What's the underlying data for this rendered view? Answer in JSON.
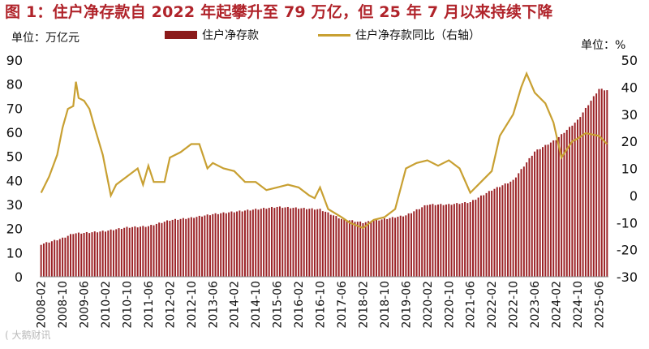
{
  "title": "图 1：住户净存款自 2022 年起攀升至 79 万亿，但 25 年 7 月以来持续下降",
  "watermark": "( 大鹅财讯",
  "chart_data": {
    "type": "bar+line",
    "left_unit": "单位：万亿元",
    "right_unit": "单位：%",
    "left_axis": {
      "min": 0,
      "max": 90,
      "ticks": [
        0,
        10,
        20,
        30,
        40,
        50,
        60,
        70,
        80,
        90
      ]
    },
    "right_axis": {
      "min": -30,
      "max": 50,
      "ticks": [
        -30,
        -20,
        -10,
        0,
        10,
        20,
        30,
        40,
        50
      ]
    },
    "x_tick_labels": [
      "2008-02",
      "2008-10",
      "2009-06",
      "2010-02",
      "2010-10",
      "2011-06",
      "2012-02",
      "2012-10",
      "2013-06",
      "2014-02",
      "2014-10",
      "2015-06",
      "2016-02",
      "2016-10",
      "2017-06",
      "2018-02",
      "2018-10",
      "2019-06",
      "2020-02",
      "2020-10",
      "2021-06",
      "2022-02",
      "2022-10",
      "2023-06",
      "2024-02",
      "2024-10",
      "2025-06"
    ],
    "legend": [
      "住户净存款",
      "住户净存款同比（右轴）"
    ],
    "series": [
      {
        "name": "住户净存款",
        "axis": "left",
        "keypoints": [
          [
            "2008-02",
            13.5
          ],
          [
            "2008-10",
            16
          ],
          [
            "2009-02",
            18
          ],
          [
            "2009-06",
            18.2
          ],
          [
            "2010-02",
            19
          ],
          [
            "2010-10",
            20.5
          ],
          [
            "2011-06",
            21
          ],
          [
            "2012-02",
            23.5
          ],
          [
            "2012-10",
            24.5
          ],
          [
            "2013-06",
            26
          ],
          [
            "2014-02",
            27
          ],
          [
            "2014-10",
            28
          ],
          [
            "2015-06",
            29
          ],
          [
            "2016-02",
            28.5
          ],
          [
            "2016-10",
            28
          ],
          [
            "2017-06",
            24
          ],
          [
            "2018-02",
            22.5
          ],
          [
            "2018-10",
            24
          ],
          [
            "2019-06",
            25.5
          ],
          [
            "2020-02",
            30
          ],
          [
            "2020-10",
            30
          ],
          [
            "2021-06",
            31
          ],
          [
            "2022-02",
            36
          ],
          [
            "2022-10",
            40
          ],
          [
            "2023-06",
            52
          ],
          [
            "2024-02",
            57
          ],
          [
            "2024-10",
            65
          ],
          [
            "2025-06",
            78
          ],
          [
            "2025-09",
            77.5
          ]
        ]
      },
      {
        "name": "住户净存款同比（右轴）",
        "axis": "right",
        "keypoints": [
          [
            "2008-02",
            1
          ],
          [
            "2008-05",
            7
          ],
          [
            "2008-08",
            15
          ],
          [
            "2008-10",
            25
          ],
          [
            "2008-12",
            32
          ],
          [
            "2009-02",
            33
          ],
          [
            "2009-03",
            42
          ],
          [
            "2009-04",
            36
          ],
          [
            "2009-06",
            35
          ],
          [
            "2009-08",
            32
          ],
          [
            "2009-10",
            25
          ],
          [
            "2010-01",
            15
          ],
          [
            "2010-02",
            10
          ],
          [
            "2010-04",
            0
          ],
          [
            "2010-06",
            4
          ],
          [
            "2010-10",
            7
          ],
          [
            "2011-02",
            10
          ],
          [
            "2011-04",
            4
          ],
          [
            "2011-06",
            11
          ],
          [
            "2011-08",
            5
          ],
          [
            "2011-12",
            5
          ],
          [
            "2012-02",
            14
          ],
          [
            "2012-06",
            16
          ],
          [
            "2012-10",
            19
          ],
          [
            "2013-01",
            19
          ],
          [
            "2013-04",
            10
          ],
          [
            "2013-06",
            12
          ],
          [
            "2013-10",
            10
          ],
          [
            "2014-02",
            9
          ],
          [
            "2014-06",
            5
          ],
          [
            "2014-10",
            5
          ],
          [
            "2015-02",
            2
          ],
          [
            "2015-06",
            3
          ],
          [
            "2015-10",
            4
          ],
          [
            "2016-02",
            3
          ],
          [
            "2016-06",
            0
          ],
          [
            "2016-08",
            -1
          ],
          [
            "2016-10",
            3
          ],
          [
            "2017-01",
            -5
          ],
          [
            "2017-06",
            -8
          ],
          [
            "2017-09",
            -10
          ],
          [
            "2018-02",
            -12
          ],
          [
            "2018-06",
            -9
          ],
          [
            "2018-10",
            -8
          ],
          [
            "2019-02",
            -5
          ],
          [
            "2019-06",
            10
          ],
          [
            "2019-10",
            12
          ],
          [
            "2020-02",
            13
          ],
          [
            "2020-06",
            11
          ],
          [
            "2020-10",
            13
          ],
          [
            "2021-02",
            10
          ],
          [
            "2021-06",
            1
          ],
          [
            "2021-10",
            5
          ],
          [
            "2022-02",
            9
          ],
          [
            "2022-05",
            22
          ],
          [
            "2022-10",
            30
          ],
          [
            "2023-01",
            40
          ],
          [
            "2023-03",
            45
          ],
          [
            "2023-06",
            38
          ],
          [
            "2023-10",
            34
          ],
          [
            "2024-01",
            27
          ],
          [
            "2024-04",
            14
          ],
          [
            "2024-08",
            20
          ],
          [
            "2024-10",
            21
          ],
          [
            "2025-01",
            23
          ],
          [
            "2025-06",
            22
          ],
          [
            "2025-09",
            19
          ]
        ]
      }
    ]
  }
}
